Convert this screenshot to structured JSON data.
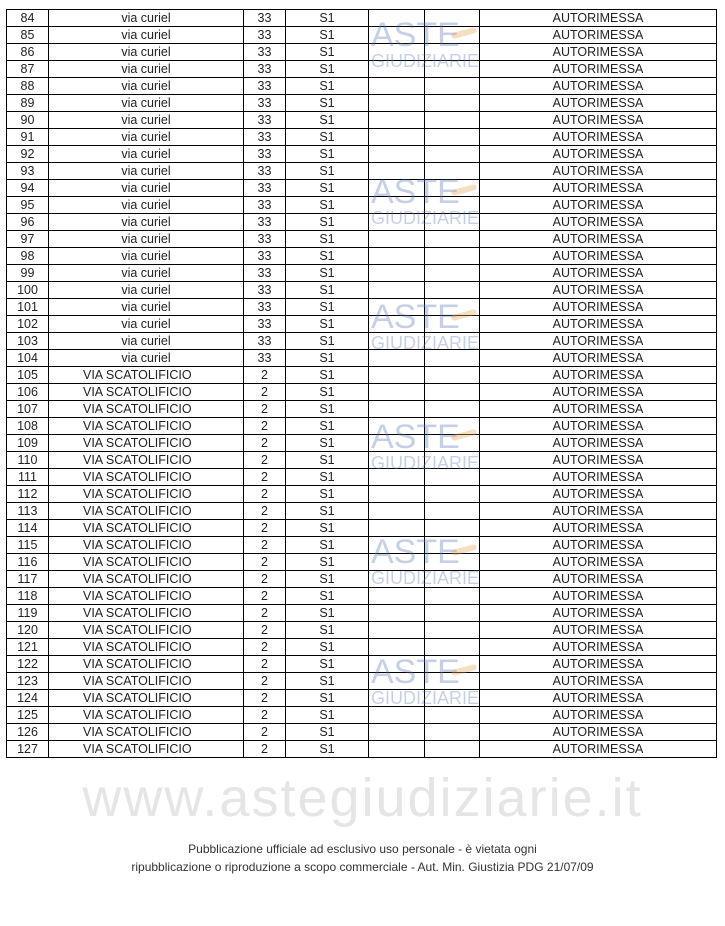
{
  "columns": [
    "n",
    "street",
    "civic",
    "floor",
    "col5",
    "col6",
    "use"
  ],
  "rows": [
    [
      "84",
      "via curiel",
      "33",
      "S1",
      "",
      "",
      "AUTORIMESSA"
    ],
    [
      "85",
      "via curiel",
      "33",
      "S1",
      "",
      "",
      "AUTORIMESSA"
    ],
    [
      "86",
      "via curiel",
      "33",
      "S1",
      "",
      "",
      "AUTORIMESSA"
    ],
    [
      "87",
      "via curiel",
      "33",
      "S1",
      "",
      "",
      "AUTORIMESSA"
    ],
    [
      "88",
      "via curiel",
      "33",
      "S1",
      "",
      "",
      "AUTORIMESSA"
    ],
    [
      "89",
      "via curiel",
      "33",
      "S1",
      "",
      "",
      "AUTORIMESSA"
    ],
    [
      "90",
      "via curiel",
      "33",
      "S1",
      "",
      "",
      "AUTORIMESSA"
    ],
    [
      "91",
      "via curiel",
      "33",
      "S1",
      "",
      "",
      "AUTORIMESSA"
    ],
    [
      "92",
      "via curiel",
      "33",
      "S1",
      "",
      "",
      "AUTORIMESSA"
    ],
    [
      "93",
      "via curiel",
      "33",
      "S1",
      "",
      "",
      "AUTORIMESSA"
    ],
    [
      "94",
      "via curiel",
      "33",
      "S1",
      "",
      "",
      "AUTORIMESSA"
    ],
    [
      "95",
      "via curiel",
      "33",
      "S1",
      "",
      "",
      "AUTORIMESSA"
    ],
    [
      "96",
      "via curiel",
      "33",
      "S1",
      "",
      "",
      "AUTORIMESSA"
    ],
    [
      "97",
      "via curiel",
      "33",
      "S1",
      "",
      "",
      "AUTORIMESSA"
    ],
    [
      "98",
      "via curiel",
      "33",
      "S1",
      "",
      "",
      "AUTORIMESSA"
    ],
    [
      "99",
      "via curiel",
      "33",
      "S1",
      "",
      "",
      "AUTORIMESSA"
    ],
    [
      "100",
      "via curiel",
      "33",
      "S1",
      "",
      "",
      "AUTORIMESSA"
    ],
    [
      "101",
      "via curiel",
      "33",
      "S1",
      "",
      "",
      "AUTORIMESSA"
    ],
    [
      "102",
      "via curiel",
      "33",
      "S1",
      "",
      "",
      "AUTORIMESSA"
    ],
    [
      "103",
      "via curiel",
      "33",
      "S1",
      "",
      "",
      "AUTORIMESSA"
    ],
    [
      "104",
      "via curiel",
      "33",
      "S1",
      "",
      "",
      "AUTORIMESSA"
    ],
    [
      "105",
      "VIA SCATOLIFICIO",
      "2",
      "S1",
      "",
      "",
      "AUTORIMESSA"
    ],
    [
      "106",
      "VIA SCATOLIFICIO",
      "2",
      "S1",
      "",
      "",
      "AUTORIMESSA"
    ],
    [
      "107",
      "VIA SCATOLIFICIO",
      "2",
      "S1",
      "",
      "",
      "AUTORIMESSA"
    ],
    [
      "108",
      "VIA SCATOLIFICIO",
      "2",
      "S1",
      "",
      "",
      "AUTORIMESSA"
    ],
    [
      "109",
      "VIA SCATOLIFICIO",
      "2",
      "S1",
      "",
      "",
      "AUTORIMESSA"
    ],
    [
      "110",
      "VIA SCATOLIFICIO",
      "2",
      "S1",
      "",
      "",
      "AUTORIMESSA"
    ],
    [
      "111",
      "VIA SCATOLIFICIO",
      "2",
      "S1",
      "",
      "",
      "AUTORIMESSA"
    ],
    [
      "112",
      "VIA SCATOLIFICIO",
      "2",
      "S1",
      "",
      "",
      "AUTORIMESSA"
    ],
    [
      "113",
      "VIA SCATOLIFICIO",
      "2",
      "S1",
      "",
      "",
      "AUTORIMESSA"
    ],
    [
      "114",
      "VIA SCATOLIFICIO",
      "2",
      "S1",
      "",
      "",
      "AUTORIMESSA"
    ],
    [
      "115",
      "VIA SCATOLIFICIO",
      "2",
      "S1",
      "",
      "",
      "AUTORIMESSA"
    ],
    [
      "116",
      "VIA SCATOLIFICIO",
      "2",
      "S1",
      "",
      "",
      "AUTORIMESSA"
    ],
    [
      "117",
      "VIA SCATOLIFICIO",
      "2",
      "S1",
      "",
      "",
      "AUTORIMESSA"
    ],
    [
      "118",
      "VIA SCATOLIFICIO",
      "2",
      "S1",
      "",
      "",
      "AUTORIMESSA"
    ],
    [
      "119",
      "VIA SCATOLIFICIO",
      "2",
      "S1",
      "",
      "",
      "AUTORIMESSA"
    ],
    [
      "120",
      "VIA SCATOLIFICIO",
      "2",
      "S1",
      "",
      "",
      "AUTORIMESSA"
    ],
    [
      "121",
      "VIA SCATOLIFICIO",
      "2",
      "S1",
      "",
      "",
      "AUTORIMESSA"
    ],
    [
      "122",
      "VIA SCATOLIFICIO",
      "2",
      "S1",
      "",
      "",
      "AUTORIMESSA"
    ],
    [
      "123",
      "VIA SCATOLIFICIO",
      "2",
      "S1",
      "",
      "",
      "AUTORIMESSA"
    ],
    [
      "124",
      "VIA SCATOLIFICIO",
      "2",
      "S1",
      "",
      "",
      "AUTORIMESSA"
    ],
    [
      "125",
      "VIA SCATOLIFICIO",
      "2",
      "S1",
      "",
      "",
      "AUTORIMESSA"
    ],
    [
      "126",
      "VIA SCATOLIFICIO",
      "2",
      "S1",
      "",
      "",
      "AUTORIMESSA"
    ],
    [
      "127",
      "VIA SCATOLIFICIO",
      "2",
      "S1",
      "",
      "",
      "AUTORIMESSA"
    ]
  ],
  "watermark": {
    "line1": "ASTE",
    "line2": "GIUDIZIARIE",
    "site": "www.astegiudiziarie.it"
  },
  "footer": {
    "line1": "Pubblicazione ufficiale ad esclusivo uso personale - è vietata ogni",
    "line2": "ripubblicazione o riproduzione a scopo commerciale - Aut. Min. Giustizia PDG 21/07/09"
  }
}
